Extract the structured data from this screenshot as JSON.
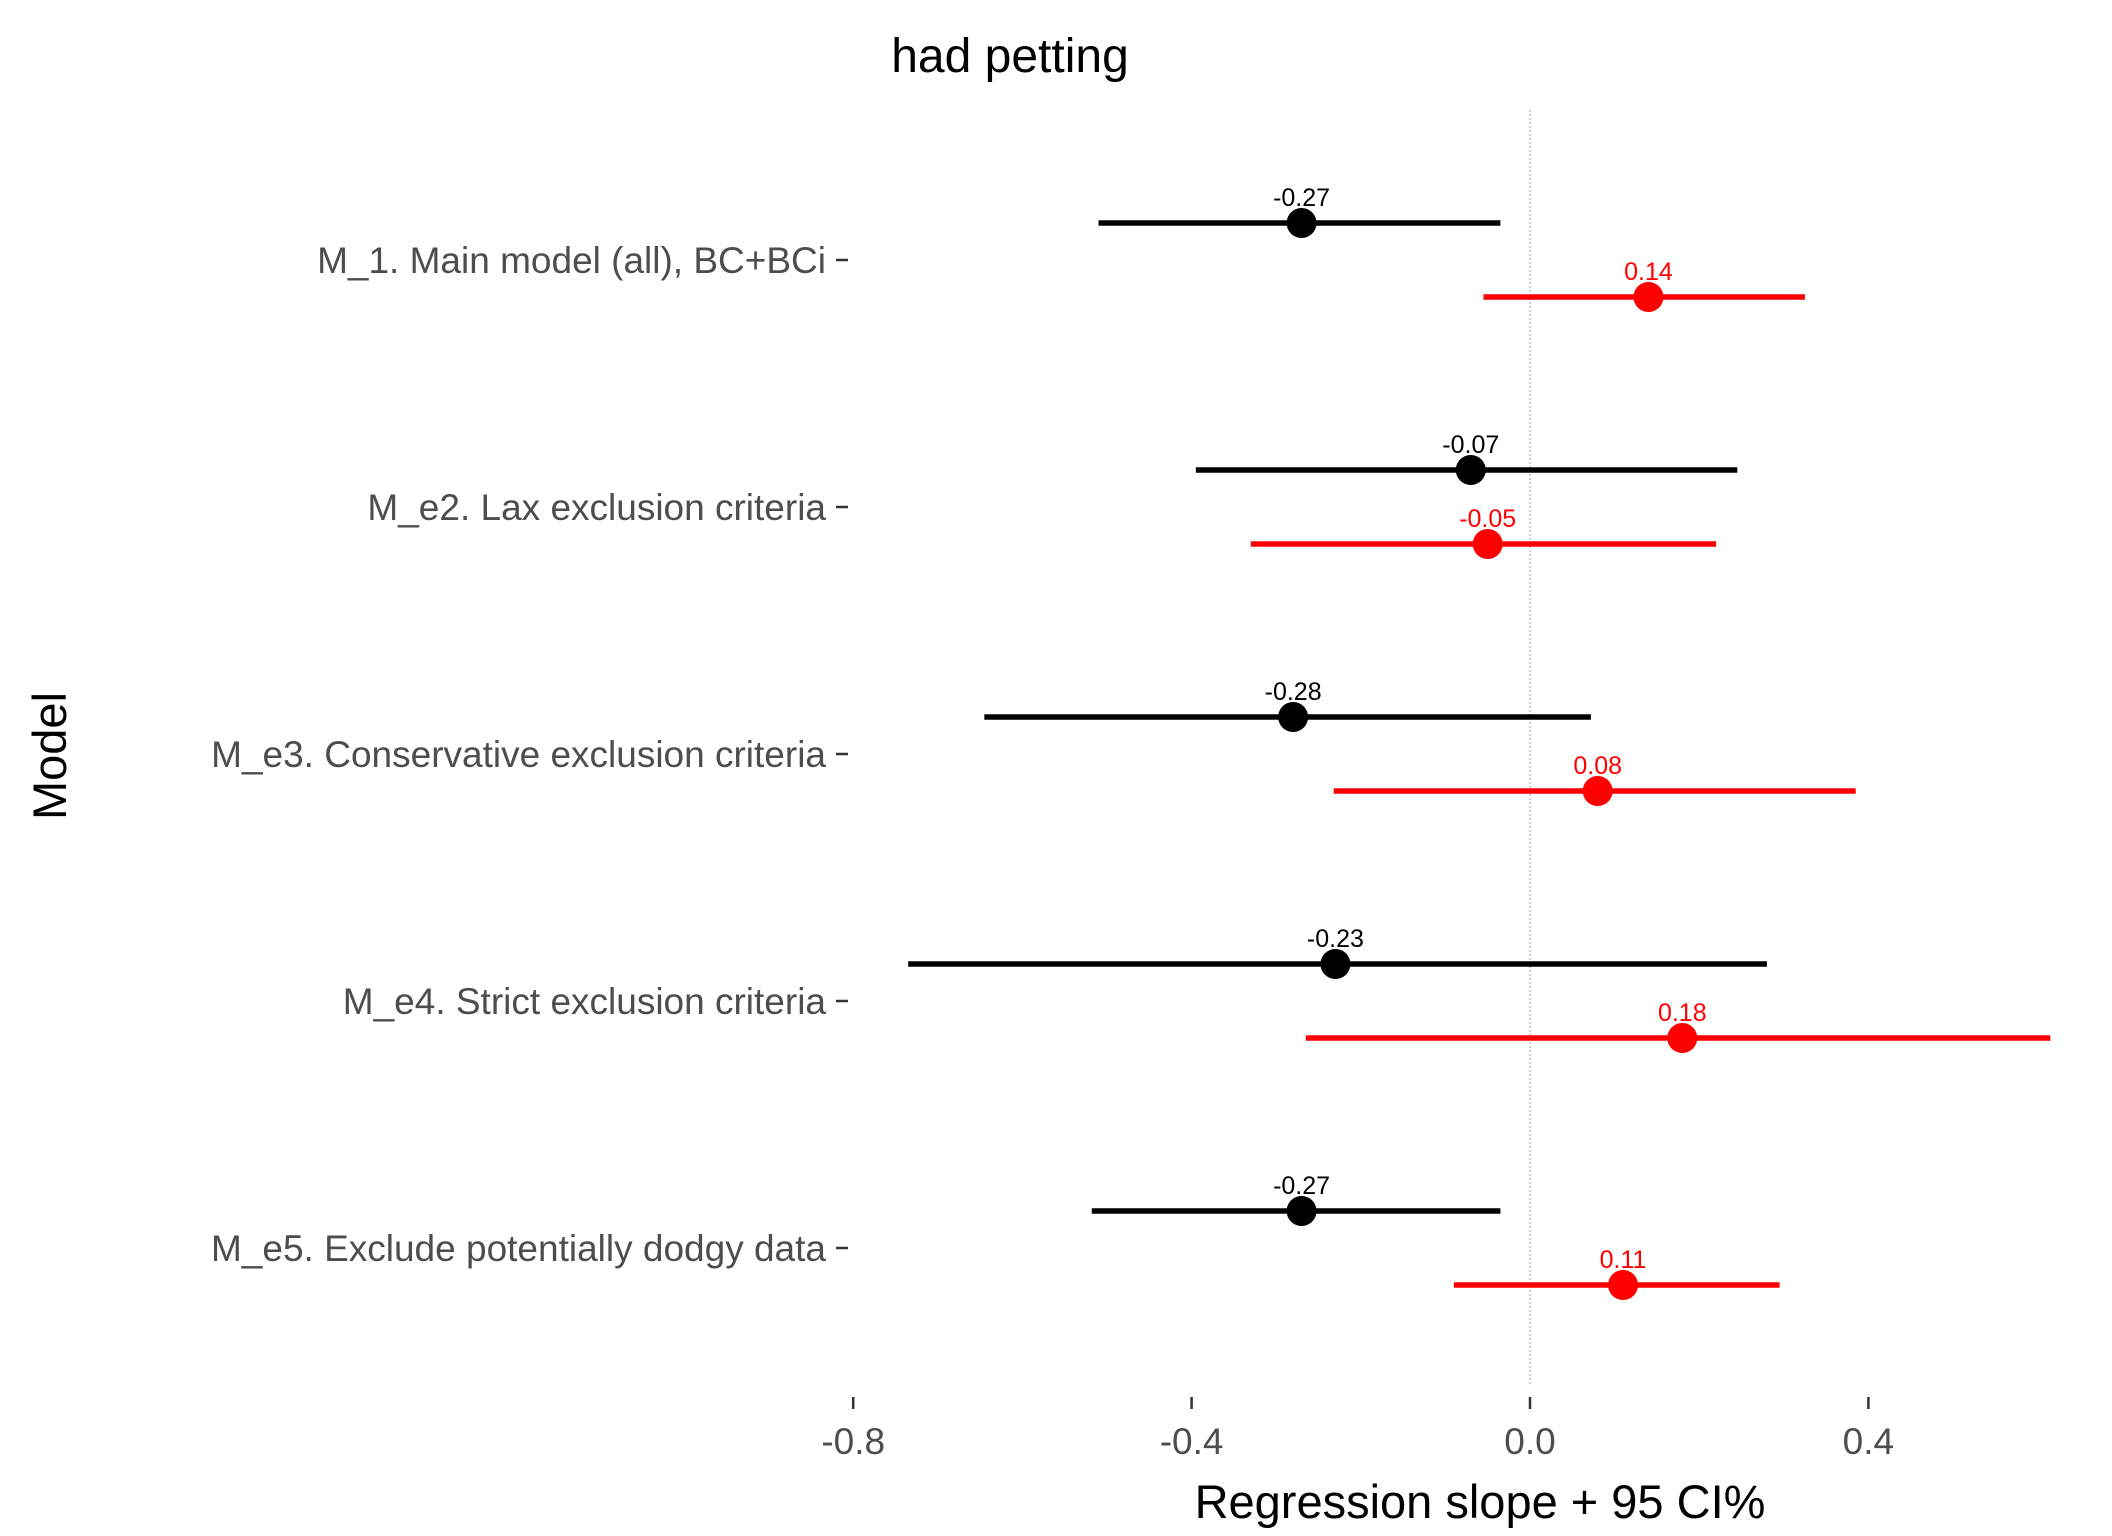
{
  "chart_data": {
    "type": "forest",
    "title": "had petting",
    "xlabel": "Regression slope + 95 CI%",
    "ylabel": "Model",
    "xlim": [
      -0.8,
      0.65
    ],
    "xticks": [
      "-0.8",
      "-0.4",
      "0.0",
      "0.4"
    ],
    "xtick_values": [
      -0.8,
      -0.4,
      0.0,
      0.4
    ],
    "reference_line": 0.0,
    "colors": {
      "black_series": "#000000",
      "red_series": "#ff0000",
      "reference": "#bdbdbd"
    },
    "models": [
      {
        "label": "M_1. Main model (all), BC+BCi",
        "black": {
          "estimate": -0.27,
          "lower": -0.51,
          "upper": -0.035,
          "label": "-0.27"
        },
        "red": {
          "estimate": 0.14,
          "lower": -0.055,
          "upper": 0.325,
          "label": "0.14"
        }
      },
      {
        "label": "M_e2. Lax exclusion criteria",
        "black": {
          "estimate": -0.07,
          "lower": -0.395,
          "upper": 0.245,
          "label": "-0.07"
        },
        "red": {
          "estimate": -0.05,
          "lower": -0.33,
          "upper": 0.22,
          "label": "-0.05"
        }
      },
      {
        "label": "M_e3. Conservative exclusion criteria",
        "black": {
          "estimate": -0.28,
          "lower": -0.645,
          "upper": 0.072,
          "label": "-0.28"
        },
        "red": {
          "estimate": 0.08,
          "lower": -0.232,
          "upper": 0.385,
          "label": "0.08"
        }
      },
      {
        "label": "M_e4. Strict exclusion criteria",
        "black": {
          "estimate": -0.23,
          "lower": -0.735,
          "upper": 0.28,
          "label": "-0.23"
        },
        "red": {
          "estimate": 0.18,
          "lower": -0.265,
          "upper": 0.615,
          "label": "0.18"
        }
      },
      {
        "label": "M_e5. Exclude potentially dodgy data",
        "black": {
          "estimate": -0.27,
          "lower": -0.518,
          "upper": -0.035,
          "label": "-0.27"
        },
        "red": {
          "estimate": 0.11,
          "lower": -0.09,
          "upper": 0.295,
          "label": "0.11"
        }
      }
    ]
  }
}
